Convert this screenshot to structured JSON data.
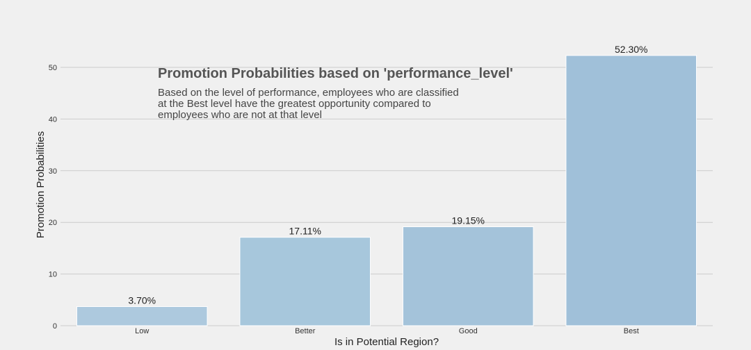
{
  "chart_data": {
    "type": "bar",
    "title": "Promotion Probabilities based on 'performance_level'",
    "subtitle_lines": [
      "Based on the level of performance, employees who are classified",
      "at the Best level have the greatest opportunity compared to",
      "employees who are not at that level"
    ],
    "xlabel": "Is in Potential Region?",
    "ylabel": "Promotion Probabilities",
    "categories": [
      "Low",
      "Better",
      "Good",
      "Best"
    ],
    "values": [
      3.7,
      17.11,
      19.15,
      52.3
    ],
    "data_labels": [
      "3.70%",
      "17.11%",
      "19.15%",
      "52.30%"
    ],
    "bar_colors": [
      "#adc9de",
      "#a7c7dc",
      "#a4c3da",
      "#a0c0d9"
    ],
    "ylim": [
      0,
      55
    ],
    "yticks": [
      0,
      10,
      20,
      30,
      40,
      50
    ],
    "grid": "horizontal"
  }
}
